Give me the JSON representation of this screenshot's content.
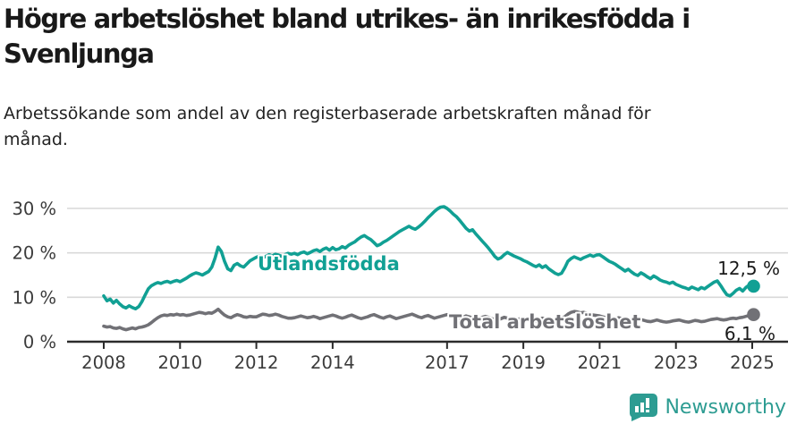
{
  "header": {
    "title": "Högre arbetslöshet bland utrikes- än inrikesfödda i Svenljunga",
    "subtitle": "Arbetssökande som andel av den registerbaserade arbetskraften månad för månad."
  },
  "chart_data": {
    "type": "line",
    "title": "Högre arbetslöshet bland utrikes- än inrikesfödda i Svenljunga",
    "unit": "%",
    "x_start_year": 2008,
    "x_end_year": 2025,
    "points_per_year": 12,
    "ylim": [
      0,
      32
    ],
    "grid": "horizontal",
    "legend_position": "inline-labels",
    "x_ticks": [
      2008,
      2010,
      2012,
      2014,
      2017,
      2019,
      2021,
      2023,
      2025
    ],
    "y_ticks": [
      {
        "value": 0,
        "label": "0 %"
      },
      {
        "value": 10,
        "label": "10 %"
      },
      {
        "value": 20,
        "label": "20 %"
      },
      {
        "value": 30,
        "label": "30 %"
      }
    ],
    "series": [
      {
        "name": "Utlandsfödda",
        "color": "#11a094",
        "end_label": "12,5 %",
        "end_value": 12.5,
        "values": [
          10.3,
          9.2,
          9.6,
          8.7,
          9.3,
          8.5,
          7.9,
          7.6,
          8.1,
          7.7,
          7.4,
          7.9,
          9.0,
          10.5,
          11.9,
          12.6,
          13.0,
          13.3,
          13.1,
          13.4,
          13.6,
          13.3,
          13.6,
          13.8,
          13.5,
          13.9,
          14.3,
          14.8,
          15.2,
          15.5,
          15.3,
          15.0,
          15.4,
          15.8,
          16.8,
          18.8,
          21.3,
          20.3,
          18.1,
          16.4,
          16.0,
          17.2,
          17.6,
          17.1,
          16.8,
          17.5,
          18.2,
          18.6,
          19.0,
          19.3,
          18.9,
          19.2,
          19.6,
          19.3,
          19.7,
          19.5,
          19.2,
          19.6,
          19.9,
          19.7,
          19.9,
          19.6,
          20.0,
          20.2,
          19.8,
          20.1,
          20.5,
          20.7,
          20.3,
          20.8,
          21.1,
          20.6,
          21.2,
          20.7,
          20.9,
          21.4,
          21.1,
          21.7,
          22.1,
          22.5,
          23.1,
          23.6,
          23.9,
          23.4,
          23.0,
          22.3,
          21.6,
          21.9,
          22.4,
          22.8,
          23.3,
          23.8,
          24.3,
          24.8,
          25.2,
          25.6,
          26.0,
          25.6,
          25.3,
          25.8,
          26.4,
          27.1,
          27.9,
          28.6,
          29.3,
          29.9,
          30.3,
          30.4,
          30.0,
          29.4,
          28.7,
          28.1,
          27.3,
          26.4,
          25.5,
          24.9,
          25.2,
          24.3,
          23.5,
          22.7,
          21.9,
          21.1,
          20.2,
          19.2,
          18.6,
          18.9,
          19.6,
          20.1,
          19.7,
          19.3,
          19.0,
          18.7,
          18.3,
          18.0,
          17.6,
          17.2,
          16.9,
          17.3,
          16.7,
          17.1,
          16.4,
          15.9,
          15.4,
          15.1,
          15.4,
          16.6,
          18.1,
          18.7,
          19.1,
          18.8,
          18.5,
          18.9,
          19.2,
          19.5,
          19.2,
          19.5,
          19.6,
          19.1,
          18.6,
          18.1,
          17.8,
          17.4,
          16.9,
          16.4,
          15.9,
          16.3,
          15.7,
          15.2,
          14.9,
          15.5,
          15.1,
          14.6,
          14.2,
          14.8,
          14.4,
          13.9,
          13.6,
          13.4,
          13.1,
          13.4,
          12.9,
          12.6,
          12.3,
          12.1,
          11.8,
          12.3,
          12.0,
          11.7,
          12.2,
          11.9,
          12.4,
          12.9,
          13.4,
          13.7,
          12.7,
          11.6,
          10.6,
          10.3,
          10.9,
          11.6,
          12.0,
          11.4,
          12.2,
          12.7,
          12.5
        ]
      },
      {
        "name": "Total arbetslöshet",
        "color": "#717176",
        "end_label": "6,1 %",
        "end_value": 6.1,
        "values": [
          3.5,
          3.3,
          3.4,
          3.1,
          3.0,
          3.2,
          2.9,
          2.7,
          2.9,
          3.1,
          2.9,
          3.2,
          3.3,
          3.5,
          3.8,
          4.3,
          4.9,
          5.4,
          5.8,
          6.0,
          5.9,
          6.1,
          6.0,
          6.2,
          6.0,
          6.1,
          5.9,
          6.0,
          6.2,
          6.4,
          6.6,
          6.5,
          6.3,
          6.5,
          6.4,
          6.8,
          7.3,
          6.6,
          6.0,
          5.6,
          5.4,
          5.8,
          6.1,
          5.9,
          5.6,
          5.5,
          5.7,
          5.6,
          5.6,
          5.9,
          6.2,
          6.1,
          5.9,
          6.0,
          6.2,
          6.0,
          5.7,
          5.5,
          5.3,
          5.3,
          5.4,
          5.6,
          5.8,
          5.6,
          5.4,
          5.5,
          5.7,
          5.5,
          5.2,
          5.4,
          5.6,
          5.8,
          6.0,
          5.8,
          5.5,
          5.3,
          5.5,
          5.8,
          6.0,
          5.7,
          5.4,
          5.2,
          5.4,
          5.6,
          5.9,
          6.1,
          5.8,
          5.5,
          5.3,
          5.6,
          5.8,
          5.5,
          5.2,
          5.4,
          5.6,
          5.8,
          6.0,
          6.2,
          5.9,
          5.6,
          5.4,
          5.7,
          5.9,
          5.6,
          5.3,
          5.5,
          5.7,
          5.9,
          6.1,
          5.9,
          5.6,
          5.4,
          5.2,
          5.5,
          5.8,
          5.6,
          5.3,
          5.1,
          5.3,
          5.5,
          5.7,
          5.5,
          5.2,
          5.0,
          4.9,
          5.2,
          5.5,
          5.3,
          5.0,
          4.8,
          5.0,
          5.2,
          5.4,
          5.2,
          5.0,
          4.8,
          4.7,
          5.0,
          5.3,
          5.1,
          4.9,
          4.7,
          4.9,
          5.1,
          5.3,
          5.6,
          6.2,
          6.6,
          6.8,
          6.7,
          6.5,
          6.6,
          6.4,
          6.2,
          6.0,
          5.9,
          5.8,
          5.6,
          5.4,
          5.2,
          5.0,
          5.2,
          5.4,
          5.2,
          4.9,
          4.7,
          4.8,
          5.0,
          4.9,
          5.0,
          4.8,
          4.6,
          4.5,
          4.7,
          4.9,
          4.7,
          4.5,
          4.4,
          4.5,
          4.7,
          4.8,
          4.9,
          4.7,
          4.5,
          4.4,
          4.6,
          4.8,
          4.7,
          4.5,
          4.6,
          4.8,
          5.0,
          5.1,
          5.2,
          5.0,
          4.9,
          5.0,
          5.2,
          5.3,
          5.2,
          5.4,
          5.5,
          5.7,
          5.9,
          6.1
        ]
      }
    ],
    "colors": {
      "grid": "#d9d9d9",
      "axis": "#2b2b2b",
      "tick_text": "#3b3b3b"
    }
  },
  "footer": {
    "brand": "Newsworthy"
  }
}
